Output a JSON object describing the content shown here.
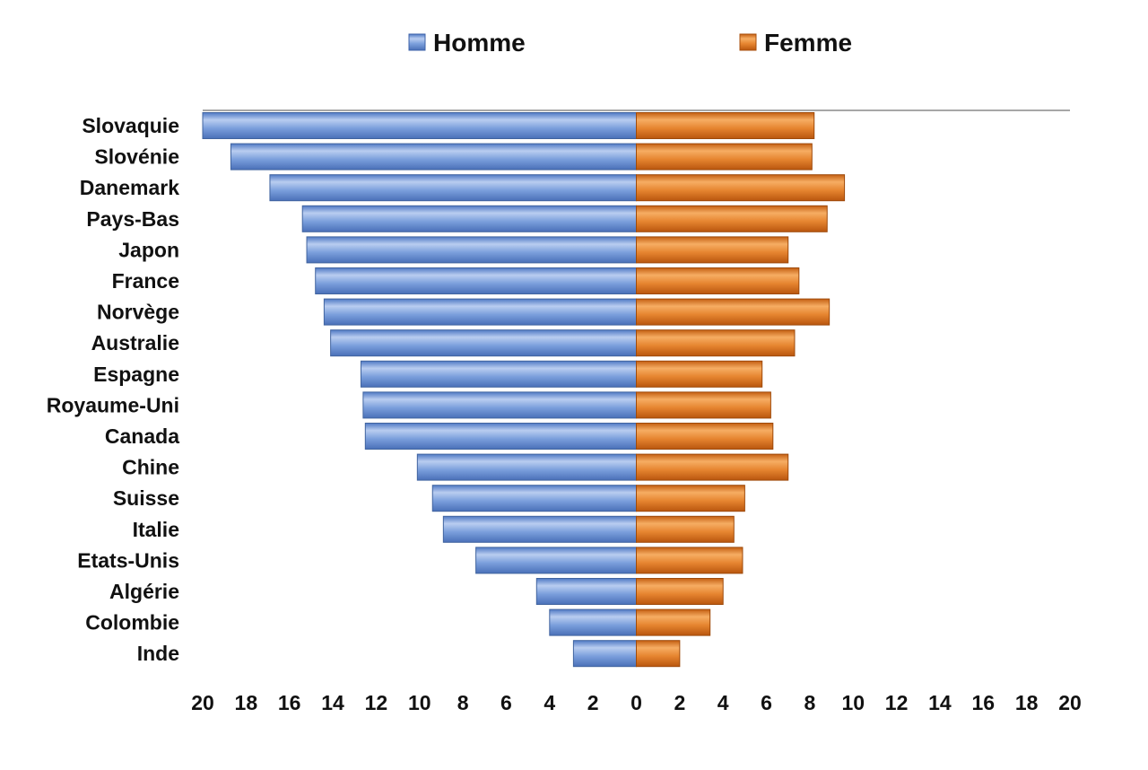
{
  "chart_data": {
    "type": "bar",
    "orientation": "horizontal-butterfly",
    "categories": [
      "Slovaquie",
      "Slovénie",
      "Danemark",
      "Pays-Bas",
      "Japon",
      "France",
      "Norvège",
      "Australie",
      "Espagne",
      "Royaume-Uni",
      "Canada",
      "Chine",
      "Suisse",
      "Italie",
      "Etats-Unis",
      "Algérie",
      "Colombie",
      "Inde"
    ],
    "series": [
      {
        "name": "Homme",
        "side": "left",
        "color": "#6f97d8",
        "values": [
          20.0,
          18.7,
          16.9,
          15.4,
          15.2,
          14.8,
          14.4,
          14.1,
          12.7,
          12.6,
          12.5,
          10.1,
          9.4,
          8.9,
          7.4,
          4.6,
          4.0,
          2.9
        ]
      },
      {
        "name": "Femme",
        "side": "right",
        "color": "#e07a22",
        "values": [
          8.2,
          8.1,
          9.6,
          8.8,
          7.0,
          7.5,
          8.9,
          7.3,
          5.8,
          6.2,
          6.3,
          7.0,
          5.0,
          4.5,
          4.9,
          4.0,
          3.4,
          2.0
        ]
      }
    ],
    "xlim": [
      -20,
      20
    ],
    "xticks": [
      -20,
      -18,
      -16,
      -14,
      -12,
      -10,
      -8,
      -6,
      -4,
      -2,
      0,
      2,
      4,
      6,
      8,
      10,
      12,
      14,
      16,
      18,
      20
    ],
    "xtick_labels": [
      "20",
      "18",
      "16",
      "14",
      "12",
      "10",
      "8",
      "6",
      "4",
      "2",
      "0",
      "2",
      "4",
      "6",
      "8",
      "10",
      "12",
      "14",
      "16",
      "18",
      "20"
    ],
    "title": "",
    "xlabel": "",
    "ylabel": "",
    "legend_position": "top-center",
    "grid": false
  }
}
